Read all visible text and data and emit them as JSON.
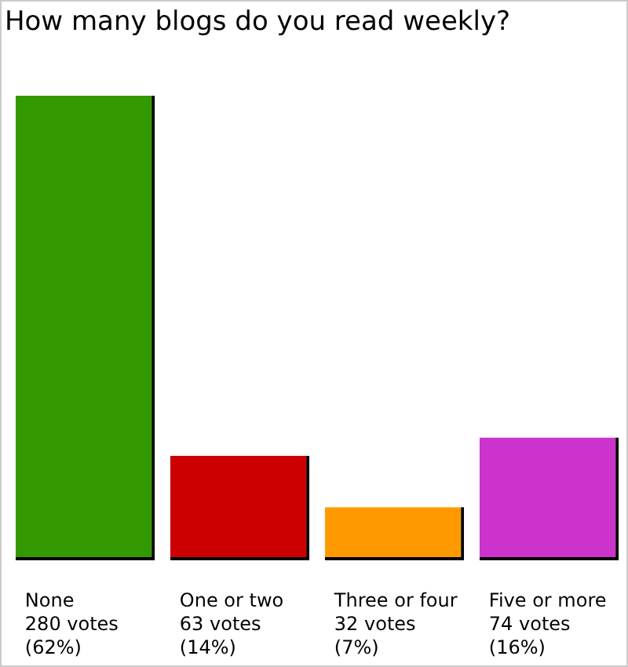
{
  "chart_data": {
    "type": "bar",
    "title": "How many blogs do you read weekly?",
    "categories": [
      "None",
      "One or two",
      "Three or four",
      "Five or more"
    ],
    "values": [
      280,
      63,
      32,
      74
    ],
    "colors": [
      "#339900",
      "#cc0000",
      "#ff9900",
      "#cc33cc"
    ],
    "value_labels": [
      "280 votes\n(62%)",
      "63 votes\n(14%)",
      "32 votes\n(7%)",
      "74 votes\n(16%)"
    ]
  }
}
